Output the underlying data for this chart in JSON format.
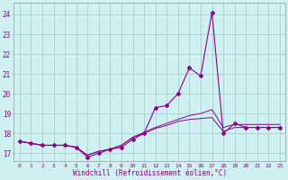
{
  "xlabel": "Windchill (Refroidissement éolien,°C)",
  "background_color": "#cff0f0",
  "grid_color": "#aacfcf",
  "line_color": "#880088",
  "x_values": [
    0,
    1,
    2,
    3,
    4,
    5,
    6,
    7,
    8,
    9,
    10,
    11,
    12,
    13,
    14,
    15,
    16,
    17,
    18,
    19,
    20,
    21,
    22,
    23
  ],
  "y_main": [
    17.6,
    17.5,
    17.4,
    17.4,
    17.4,
    17.3,
    16.8,
    17.0,
    17.2,
    17.3,
    17.7,
    18.0,
    19.3,
    19.4,
    20.0,
    21.3,
    20.9,
    24.1,
    18.0,
    18.5,
    18.3,
    18.3,
    18.3,
    18.3
  ],
  "y_line2": [
    17.6,
    17.5,
    17.4,
    17.4,
    17.4,
    17.3,
    16.9,
    17.1,
    17.2,
    17.4,
    17.8,
    18.05,
    18.3,
    18.5,
    18.7,
    18.9,
    19.0,
    19.2,
    18.3,
    18.45,
    18.45,
    18.45,
    18.45,
    18.45
  ],
  "y_line3": [
    17.6,
    17.5,
    17.4,
    17.4,
    17.4,
    17.3,
    16.9,
    17.1,
    17.2,
    17.4,
    17.8,
    18.0,
    18.25,
    18.4,
    18.6,
    18.7,
    18.75,
    18.8,
    18.1,
    18.3,
    18.3,
    18.3,
    18.3,
    18.3
  ],
  "ylim": [
    16.6,
    24.6
  ],
  "yticks": [
    17,
    18,
    19,
    20,
    21,
    22,
    23,
    24
  ],
  "xlim": [
    -0.5,
    23.5
  ],
  "figsize": [
    3.2,
    2.0
  ],
  "dpi": 100
}
